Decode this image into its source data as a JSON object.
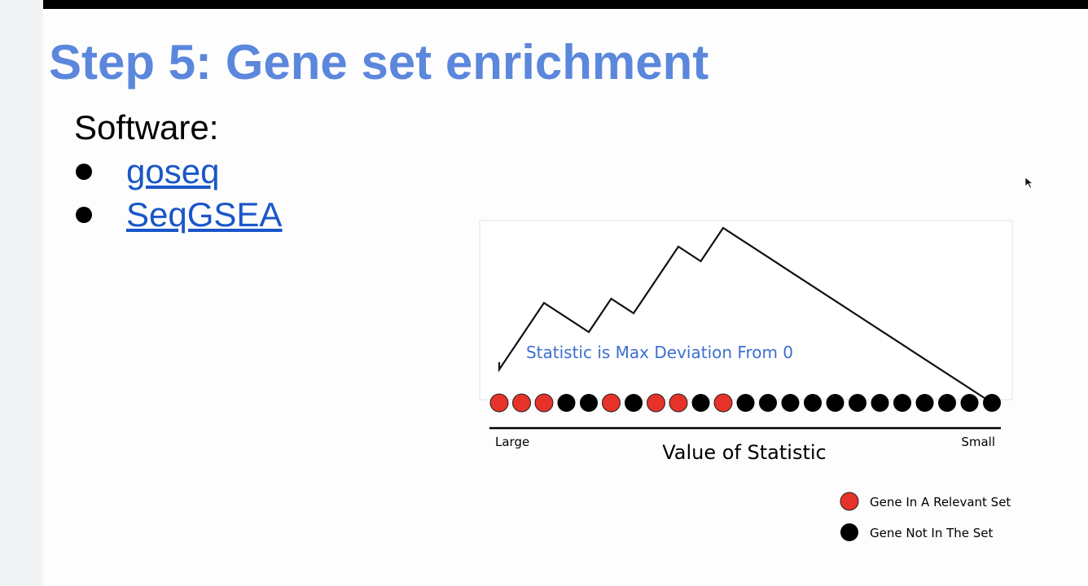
{
  "slide": {
    "title": "Step 5: Gene set enrichment",
    "software_label": "Software:",
    "links": [
      {
        "label": "goseq"
      },
      {
        "label": "SeqGSEA"
      }
    ]
  },
  "figure": {
    "annotation": "Statistic is Max Deviation From 0",
    "axis_label": "Value of Statistic",
    "axis_left_label": "Large",
    "axis_right_label": "Small",
    "gene_sequence": [
      "in",
      "in",
      "in",
      "out",
      "out",
      "in",
      "out",
      "in",
      "in",
      "out",
      "in",
      "out",
      "out",
      "out",
      "out",
      "out",
      "out",
      "out",
      "out",
      "out",
      "out",
      "out",
      "out"
    ],
    "running_sum_peak_ratio": 1.0,
    "legend": [
      {
        "label": "Gene In A Relevant Set",
        "color": "#e5332a"
      },
      {
        "label": "Gene Not In The Set",
        "color": "#000000"
      }
    ]
  },
  "colors": {
    "title": "#5b87dc",
    "link": "#1a56c8",
    "annotation": "#3d6fd0",
    "in_set": "#e5332a",
    "not_in_set": "#000000"
  }
}
